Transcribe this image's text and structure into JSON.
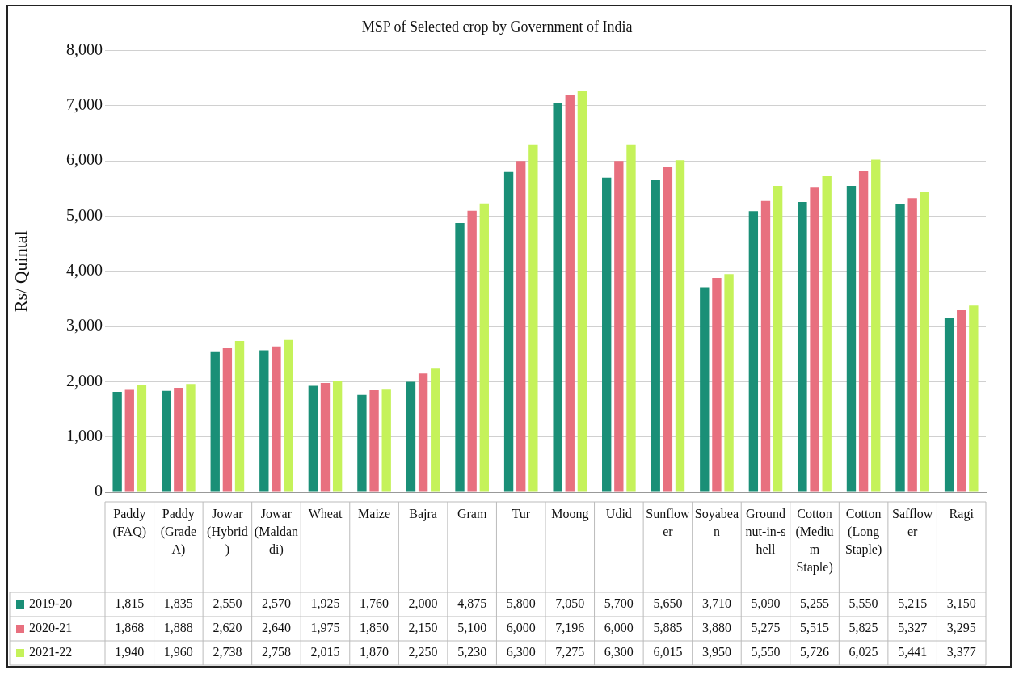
{
  "chart_data": {
    "type": "bar",
    "title": "MSP of Selected crop by Government of India",
    "ylabel": "Rs/ Quintal",
    "categories": [
      "Paddy (FAQ)",
      "Paddy (Grade A)",
      "Jowar (Hybrid)",
      "Jowar (Maldandi)",
      "Wheat",
      "Maize",
      "Bajra",
      "Gram",
      "Tur",
      "Moong",
      "Udid",
      "Sunflower",
      "Soyabean",
      "Groundnut-in-shell",
      "Cotton (Medium Staple)",
      "Cotton (Long Staple)",
      "Safflower",
      "Ragi"
    ],
    "series": [
      {
        "name": "2019-20",
        "color": "#1a8f77",
        "values": [
          1815,
          1835,
          2550,
          2570,
          1925,
          1760,
          2000,
          4875,
          5800,
          7050,
          5700,
          5650,
          3710,
          5090,
          5255,
          5550,
          5215,
          3150
        ],
        "value_labels": [
          "1,815",
          "1,835",
          "2,550",
          "2,570",
          "1,925",
          "1,760",
          "2,000",
          "4,875",
          "5,800",
          "7,050",
          "5,700",
          "5,650",
          "3,710",
          "5,090",
          "5,255",
          "5,550",
          "5,215",
          "3,150"
        ]
      },
      {
        "name": "2020-21",
        "color": "#e8707f",
        "values": [
          1868,
          1888,
          2620,
          2640,
          1975,
          1850,
          2150,
          5100,
          6000,
          7196,
          6000,
          5885,
          3880,
          5275,
          5515,
          5825,
          5327,
          3295
        ],
        "value_labels": [
          "1,868",
          "1,888",
          "2,620",
          "2,640",
          "1,975",
          "1,850",
          "2,150",
          "5,100",
          "6,000",
          "7,196",
          "6,000",
          "5,885",
          "3,880",
          "5,275",
          "5,515",
          "5,825",
          "5,327",
          "3,295"
        ]
      },
      {
        "name": "2021-22",
        "color": "#c5f25a",
        "values": [
          1940,
          1960,
          2738,
          2758,
          2015,
          1870,
          2250,
          5230,
          6300,
          7275,
          6300,
          6015,
          3950,
          5550,
          5726,
          6025,
          5441,
          3377
        ],
        "value_labels": [
          "1,940",
          "1,960",
          "2,738",
          "2,758",
          "2,015",
          "1,870",
          "2,250",
          "5,230",
          "6,300",
          "7,275",
          "6,300",
          "6,015",
          "3,950",
          "5,550",
          "5,726",
          "6,025",
          "5,441",
          "3,377"
        ]
      }
    ],
    "ylim": [
      0,
      8000
    ],
    "yticks": [
      0,
      {
        "value": 1000,
        "label": "1,000"
      },
      {
        "value": 2000,
        "label": "2,000"
      },
      {
        "value": 3000,
        "label": "3,000"
      },
      {
        "value": 4000,
        "label": "4,000"
      },
      {
        "value": 5000,
        "label": "5,000"
      },
      {
        "value": 6000,
        "label": "6,000"
      },
      {
        "value": 7000,
        "label": "7,000"
      },
      {
        "value": 8000,
        "label": "8,000"
      }
    ],
    "grid": "y",
    "legend": "bottom"
  }
}
